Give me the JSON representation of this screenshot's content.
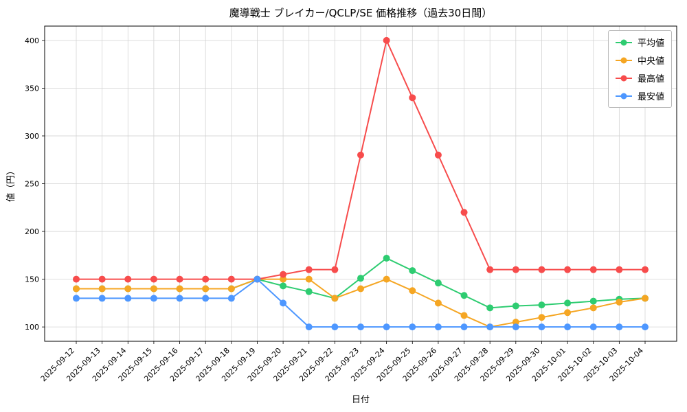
{
  "chart_data": {
    "type": "line",
    "title": "魔導戦士 ブレイカー/QCLP/SE 価格推移（過去30日間）",
    "xlabel": "日付",
    "ylabel": "値（円）",
    "ylim": [
      85,
      415
    ],
    "yticks": [
      100,
      150,
      200,
      250,
      300,
      350,
      400
    ],
    "grid": true,
    "legend_position": "upper right",
    "categories": [
      "2025-09-12",
      "2025-09-13",
      "2025-09-14",
      "2025-09-15",
      "2025-09-16",
      "2025-09-17",
      "2025-09-18",
      "2025-09-19",
      "2025-09-20",
      "2025-09-21",
      "2025-09-22",
      "2025-09-23",
      "2025-09-24",
      "2025-09-25",
      "2025-09-26",
      "2025-09-27",
      "2025-09-28",
      "2025-09-29",
      "2025-09-30",
      "2025-10-01",
      "2025-10-02",
      "2025-10-03",
      "2025-10-04"
    ],
    "series": [
      {
        "name": "平均値",
        "color": "#2ecc71",
        "values": [
          140,
          140,
          140,
          140,
          140,
          140,
          140,
          150,
          143,
          137,
          130,
          151,
          172,
          159,
          146,
          133,
          120,
          122,
          123,
          125,
          127,
          129,
          130
        ]
      },
      {
        "name": "中央値",
        "color": "#f5a623",
        "values": [
          140,
          140,
          140,
          140,
          140,
          140,
          140,
          150,
          150,
          150,
          130,
          140,
          150,
          138,
          125,
          112,
          100,
          105,
          110,
          115,
          120,
          126,
          130
        ]
      },
      {
        "name": "最高値",
        "color": "#f74c4c",
        "values": [
          150,
          150,
          150,
          150,
          150,
          150,
          150,
          150,
          155,
          160,
          160,
          280,
          400,
          340,
          280,
          220,
          160,
          160,
          160,
          160,
          160,
          160,
          160
        ]
      },
      {
        "name": "最安値",
        "color": "#4d97ff",
        "values": [
          130,
          130,
          130,
          130,
          130,
          130,
          130,
          150,
          125,
          100,
          100,
          100,
          100,
          100,
          100,
          100,
          100,
          100,
          100,
          100,
          100,
          100,
          100
        ]
      }
    ]
  }
}
